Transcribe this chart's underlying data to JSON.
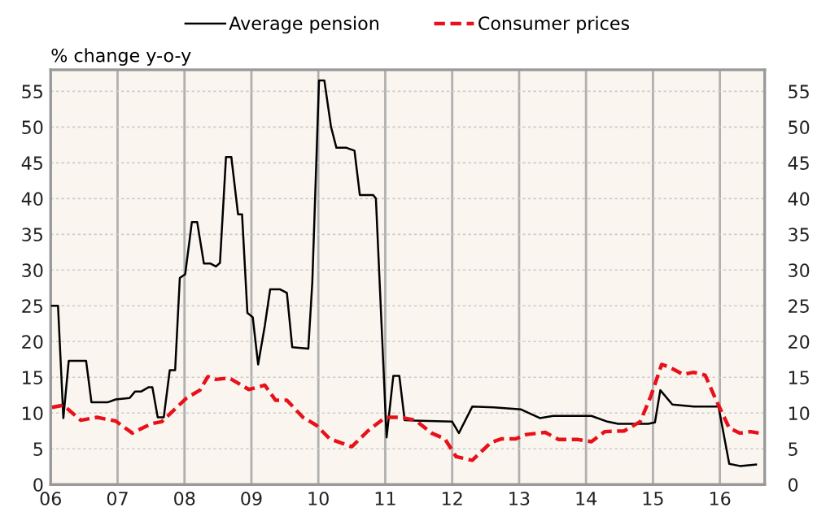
{
  "chart_data": {
    "type": "line",
    "ylabel": "% change y-o-y",
    "xlim": [
      2006,
      2016.67
    ],
    "xticks": [
      {
        "value": 2006,
        "label": "06"
      },
      {
        "value": 2007,
        "label": "07"
      },
      {
        "value": 2008,
        "label": "08"
      },
      {
        "value": 2009,
        "label": "09"
      },
      {
        "value": 2010,
        "label": "10"
      },
      {
        "value": 2011,
        "label": "11"
      },
      {
        "value": 2012,
        "label": "12"
      },
      {
        "value": 2013,
        "label": "13"
      },
      {
        "value": 2014,
        "label": "14"
      },
      {
        "value": 2015,
        "label": "15"
      },
      {
        "value": 2016,
        "label": "16"
      }
    ],
    "ylim": [
      0,
      58
    ],
    "yticks": [
      0,
      5,
      10,
      15,
      20,
      25,
      30,
      35,
      40,
      45,
      50,
      55
    ],
    "y2lim": [
      0,
      58
    ],
    "y2ticks": [
      0,
      5,
      10,
      15,
      20,
      25,
      30,
      35,
      40,
      45,
      50,
      55
    ],
    "grid": true,
    "legend": "top",
    "series": [
      {
        "name": "Average pension",
        "color": "#000000",
        "line_style": "solid",
        "x": [
          2006.02,
          2006.11,
          2006.19,
          2006.27,
          2006.53,
          2006.61,
          2006.85,
          2006.97,
          2007.18,
          2007.26,
          2007.35,
          2007.46,
          2007.52,
          2007.6,
          2007.69,
          2007.78,
          2007.86,
          2007.93,
          2008.01,
          2008.11,
          2008.19,
          2008.29,
          2008.39,
          2008.47,
          2008.53,
          2008.62,
          2008.7,
          2008.8,
          2008.86,
          2008.94,
          2009.02,
          2009.1,
          2009.2,
          2009.28,
          2009.43,
          2009.53,
          2009.61,
          2009.85,
          2009.91,
          2010.01,
          2010.09,
          2010.19,
          2010.27,
          2010.42,
          2010.54,
          2010.62,
          2010.82,
          2010.86,
          2011.02,
          2011.12,
          2011.21,
          2011.29,
          2012.0,
          2012.1,
          2012.3,
          2012.62,
          2013.03,
          2013.31,
          2013.51,
          2014.08,
          2014.32,
          2014.48,
          2014.93,
          2015.03,
          2015.11,
          2015.29,
          2015.61,
          2015.98,
          2016.14,
          2016.3,
          2016.54
        ],
        "values": [
          25,
          25,
          9.3,
          17.3,
          17.3,
          11.5,
          11.5,
          11.9,
          12.1,
          13,
          13,
          13.6,
          13.6,
          9.4,
          9.4,
          16,
          16,
          28.9,
          29.4,
          36.7,
          36.7,
          30.9,
          30.9,
          30.5,
          31,
          45.8,
          45.8,
          37.8,
          37.8,
          24,
          23.4,
          16.8,
          22.2,
          27.3,
          27.3,
          26.8,
          19.2,
          19,
          28.3,
          56.5,
          56.5,
          50,
          47.1,
          47.1,
          46.7,
          40.5,
          40.5,
          40,
          6.6,
          15.2,
          15.2,
          9,
          8.8,
          7.2,
          10.9,
          10.8,
          10.5,
          9.3,
          9.6,
          9.6,
          8.8,
          8.5,
          8.5,
          8.7,
          13.2,
          11.2,
          10.9,
          10.9,
          2.9,
          2.6,
          2.8
        ]
      },
      {
        "name": "Consumer prices",
        "color": "#e8101a",
        "line_style": "dashed",
        "x": [
          2006.02,
          2006.19,
          2006.45,
          2006.69,
          2006.97,
          2007.22,
          2007.5,
          2007.66,
          2008.03,
          2008.23,
          2008.35,
          2008.47,
          2008.67,
          2008.96,
          2009.2,
          2009.36,
          2009.53,
          2009.77,
          2009.97,
          2010.17,
          2010.5,
          2010.74,
          2011.0,
          2011.23,
          2011.45,
          2011.69,
          2011.89,
          2012.06,
          2012.3,
          2012.58,
          2012.74,
          2012.95,
          2013.11,
          2013.39,
          2013.59,
          2013.88,
          2014.08,
          2014.28,
          2014.57,
          2014.81,
          2014.97,
          2015.13,
          2015.25,
          2015.45,
          2015.61,
          2015.78,
          2015.94,
          2016.14,
          2016.3,
          2016.46,
          2016.58
        ],
        "values": [
          10.8,
          11.1,
          9,
          9.4,
          8.9,
          7.2,
          8.5,
          8.8,
          12.1,
          13.2,
          15.1,
          14.7,
          14.9,
          13.3,
          13.9,
          11.8,
          11.8,
          9.4,
          8.3,
          6.4,
          5.3,
          7.5,
          9.4,
          9.4,
          9,
          7.2,
          6.4,
          3.9,
          3.4,
          5.9,
          6.4,
          6.4,
          7,
          7.3,
          6.3,
          6.3,
          6,
          7.4,
          7.5,
          8.8,
          12.4,
          16.8,
          16.4,
          15.4,
          15.7,
          15.3,
          11.9,
          7.9,
          7.2,
          7.4,
          7.2
        ]
      }
    ]
  }
}
